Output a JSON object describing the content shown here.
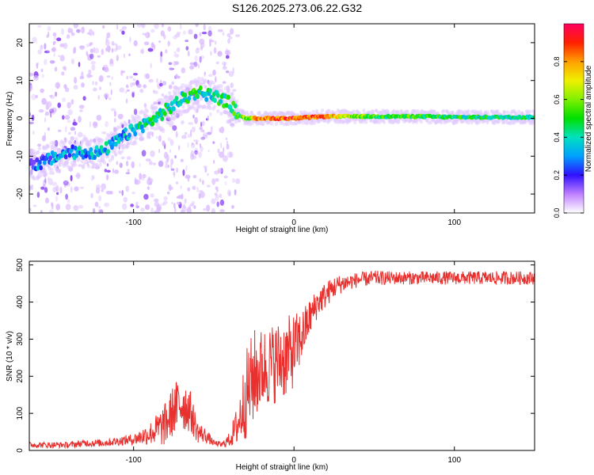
{
  "title": "S126.2025.273.06.22.G32",
  "chart_data": [
    {
      "type": "heatmap",
      "xlabel": "Height of straight line (km)",
      "ylabel": "Frequency (Hz)",
      "xlim": [
        -165,
        150
      ],
      "ylim": [
        -25,
        25
      ],
      "x_ticks": [
        -100,
        0,
        100
      ],
      "y_ticks": [
        -20,
        -10,
        0,
        10,
        20
      ],
      "colorbar": {
        "label": "Normalized spectral amplitude",
        "range": [
          0,
          1
        ],
        "ticks": [
          "0.0",
          "0.2",
          "0.4",
          "0.6",
          "0.8"
        ]
      },
      "ridge": {
        "x": [
          -160,
          -140,
          -120,
          -110,
          -100,
          -90,
          -80,
          -70,
          -60,
          -50,
          -40,
          -35,
          -30,
          -20,
          -10,
          0,
          20,
          50,
          80,
          100,
          120,
          150
        ],
        "freq": [
          -12,
          -9,
          -9,
          -6,
          -3,
          -1,
          2,
          5,
          7,
          6,
          4,
          1,
          0,
          0,
          0,
          0,
          0.5,
          0.5,
          0.5,
          0.3,
          0.3,
          0.3
        ],
        "amplitude": [
          0.25,
          0.3,
          0.35,
          0.3,
          0.35,
          0.4,
          0.4,
          0.4,
          0.45,
          0.4,
          0.5,
          0.5,
          0.6,
          0.8,
          0.85,
          0.9,
          0.8,
          0.5,
          0.5,
          0.45,
          0.45,
          0.45
        ]
      }
    },
    {
      "type": "line",
      "xlabel": "Height of straight line (km)",
      "ylabel": "SNR (10 * v/v)",
      "xlim": [
        -165,
        150
      ],
      "ylim": [
        0,
        510
      ],
      "x_ticks": [
        -100,
        0,
        100
      ],
      "y_ticks": [
        0,
        100,
        200,
        300,
        400,
        500
      ],
      "color": "#e8302e",
      "series": [
        {
          "x": [
            -165,
            -150,
            -140,
            -130,
            -120,
            -110,
            -100,
            -90,
            -80,
            -75,
            -70,
            -65,
            -60,
            -55,
            -50,
            -45,
            -40,
            -35,
            -30,
            -25,
            -20,
            -15,
            -10,
            -5,
            0,
            5,
            10,
            15,
            20,
            25,
            30,
            40,
            50,
            60,
            80,
            100,
            120,
            150
          ],
          "y": [
            15,
            15,
            15,
            20,
            20,
            25,
            30,
            45,
            70,
            110,
            130,
            110,
            50,
            40,
            20,
            15,
            30,
            70,
            150,
            200,
            220,
            230,
            240,
            250,
            270,
            310,
            360,
            400,
            420,
            440,
            450,
            460,
            465,
            465,
            465,
            465,
            465,
            465
          ],
          "spread": [
            8,
            8,
            8,
            10,
            10,
            12,
            15,
            30,
            60,
            70,
            80,
            60,
            30,
            20,
            8,
            8,
            20,
            60,
            120,
            130,
            110,
            110,
            110,
            110,
            100,
            70,
            50,
            40,
            35,
            30,
            25,
            20,
            20,
            18,
            18,
            18,
            18,
            18
          ]
        }
      ]
    }
  ]
}
